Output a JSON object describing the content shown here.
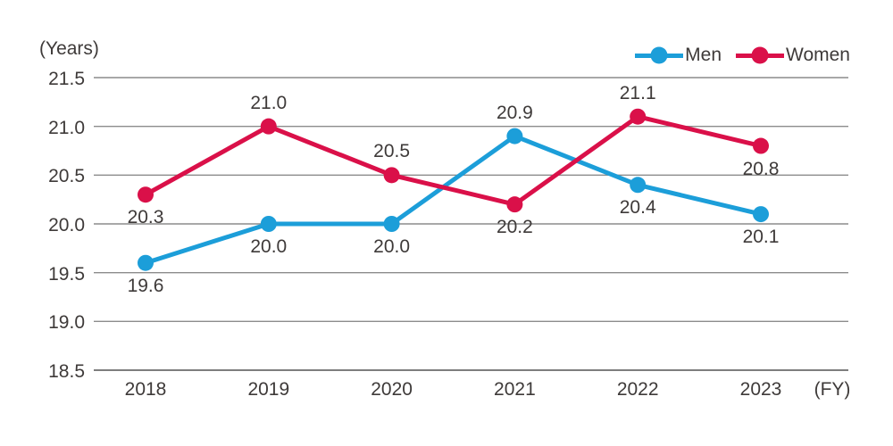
{
  "chart_data": {
    "type": "line",
    "title": "",
    "y_axis_title": "(Years)",
    "x_axis_unit": "(FY)",
    "categories": [
      "2018",
      "2019",
      "2020",
      "2021",
      "2022",
      "2023"
    ],
    "series": [
      {
        "name": "Men",
        "color": "#1C9ED9",
        "values": [
          19.6,
          20.0,
          20.0,
          20.9,
          20.4,
          20.1
        ],
        "label_positions": [
          "below",
          "below",
          "below",
          "above",
          "below",
          "below"
        ]
      },
      {
        "name": "Women",
        "color": "#DA1049",
        "values": [
          20.3,
          21.0,
          20.5,
          20.2,
          21.1,
          20.8
        ],
        "label_positions": [
          "below",
          "above",
          "above",
          "below",
          "above",
          "below"
        ]
      }
    ],
    "y_ticks": [
      21.5,
      21.0,
      20.5,
      20.0,
      19.5,
      19.0,
      18.5
    ],
    "ylim": [
      18.5,
      21.5
    ],
    "grid": true,
    "legend_position": "top-right",
    "colors": {
      "text": "#3E3A39",
      "gridline": "#8C8C8C",
      "axis_line": "#7E7E7E"
    }
  }
}
